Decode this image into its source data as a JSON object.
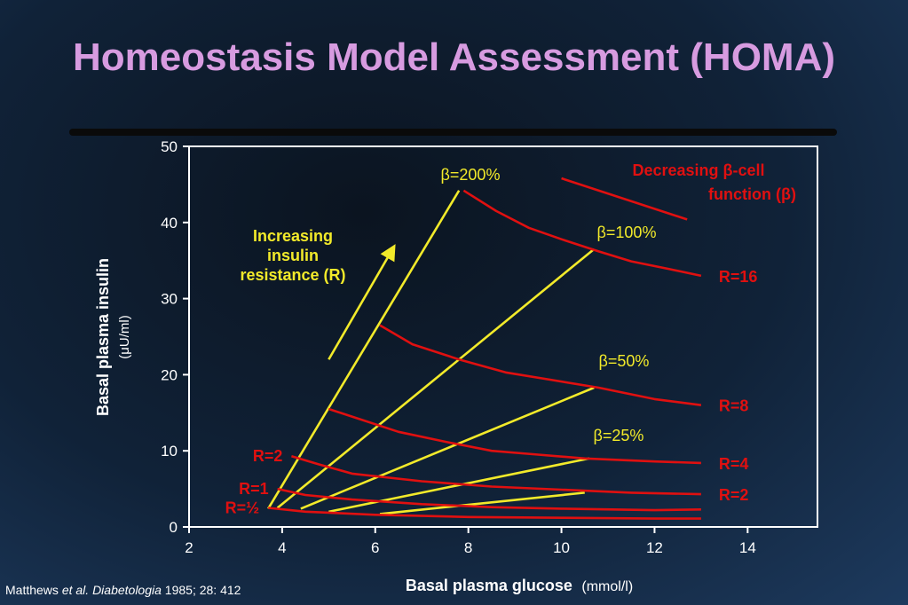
{
  "title": "Homeostasis Model Assessment (HOMA)",
  "citation": {
    "authors": "Matthews",
    "etal": "et al.",
    "journal": "Diabetologia",
    "details": "1985; 28: 412"
  },
  "chart_data": {
    "type": "line",
    "title": "",
    "xlabel": "Basal plasma glucose",
    "xunit": "(mmol/l)",
    "ylabel": "Basal plasma insulin",
    "yunit": "(μU/ml)",
    "xlim": [
      2,
      15.5
    ],
    "ylim": [
      0,
      50
    ],
    "xticks": [
      2,
      4,
      6,
      8,
      10,
      12,
      14
    ],
    "yticks": [
      0,
      10,
      20,
      30,
      40,
      50
    ],
    "grid": false,
    "colors": {
      "resistance": "#e01010",
      "beta": "#f2ea2a",
      "axes": "#ffffff"
    },
    "resistance_curves": [
      {
        "name": "R=½",
        "label_side": "left",
        "points": [
          [
            3.7,
            2.5
          ],
          [
            4.5,
            2.0
          ],
          [
            6,
            1.6
          ],
          [
            8,
            1.3
          ],
          [
            10,
            1.2
          ],
          [
            12,
            1.1
          ],
          [
            13,
            1.1
          ]
        ]
      },
      {
        "name": "R=1",
        "label_side": "left",
        "points": [
          [
            3.9,
            5.0
          ],
          [
            4.5,
            4.2
          ],
          [
            5.5,
            3.6
          ],
          [
            7,
            3.0
          ],
          [
            8.5,
            2.6
          ],
          [
            10,
            2.4
          ],
          [
            12,
            2.2
          ],
          [
            13,
            2.3
          ]
        ]
      },
      {
        "name": "R=2",
        "label_side": "left",
        "points": [
          [
            4.2,
            9.3
          ],
          [
            4.8,
            8.2
          ],
          [
            5.5,
            7.0
          ],
          [
            7,
            6.0
          ],
          [
            8.5,
            5.3
          ],
          [
            10,
            4.9
          ],
          [
            11.5,
            4.5
          ],
          [
            13,
            4.3
          ]
        ]
      },
      {
        "name": "R=2",
        "label_side": "right",
        "points": [
          [
            4.2,
            9.3
          ],
          [
            4.8,
            8.2
          ],
          [
            5.5,
            7.0
          ],
          [
            7,
            6.0
          ],
          [
            8.5,
            5.3
          ],
          [
            10,
            4.9
          ],
          [
            11.5,
            4.5
          ],
          [
            13,
            4.3
          ]
        ]
      },
      {
        "name": "R=4",
        "label_side": "right",
        "points": [
          [
            5,
            15.5
          ],
          [
            5.5,
            14.5
          ],
          [
            6.5,
            12.5
          ],
          [
            7.5,
            11.2
          ],
          [
            8.5,
            10.0
          ],
          [
            9.5,
            9.5
          ],
          [
            10.5,
            9.0
          ],
          [
            12,
            8.6
          ],
          [
            13,
            8.4
          ]
        ]
      },
      {
        "name": "R=8",
        "label_side": "right",
        "points": [
          [
            6.1,
            26.5
          ],
          [
            6.8,
            24.0
          ],
          [
            7.8,
            22.0
          ],
          [
            8.8,
            20.3
          ],
          [
            9.8,
            19.3
          ],
          [
            10.8,
            18.3
          ],
          [
            12,
            16.8
          ],
          [
            13,
            16.0
          ]
        ]
      },
      {
        "name": "R=16",
        "label_side": "right",
        "points": [
          [
            7.9,
            44.2
          ],
          [
            8.6,
            41.5
          ],
          [
            9.3,
            39.3
          ],
          [
            10,
            37.8
          ],
          [
            10.8,
            36.2
          ],
          [
            11.5,
            34.9
          ],
          [
            12.3,
            33.9
          ],
          [
            13,
            33.0
          ]
        ]
      }
    ],
    "beta_lines": [
      {
        "name": "β=200%",
        "points": [
          [
            3.7,
            2.4
          ],
          [
            7.8,
            44.2
          ]
        ]
      },
      {
        "name": "β=100%",
        "points": [
          [
            3.9,
            2.5
          ],
          [
            10.7,
            36.5
          ]
        ]
      },
      {
        "name": "β=50%",
        "points": [
          [
            4.4,
            2.4
          ],
          [
            10.7,
            18.3
          ]
        ]
      },
      {
        "name": "β=25%",
        "points": [
          [
            5,
            2.0
          ],
          [
            10.6,
            9.0
          ]
        ]
      },
      {
        "name": "",
        "points": [
          [
            6.1,
            1.7
          ],
          [
            10.5,
            4.5
          ]
        ]
      }
    ],
    "annotations": {
      "increasing_resistance": [
        "Increasing",
        "insulin",
        "resistance (R)"
      ],
      "decreasing_beta": [
        "Decreasing β-cell",
        "function (β)"
      ],
      "decreasing_line": [
        [
          10,
          45.8
        ],
        [
          12.7,
          40.4
        ]
      ],
      "increasing_arrow": [
        [
          5,
          22.0
        ],
        [
          6.4,
          36.8
        ]
      ]
    }
  }
}
